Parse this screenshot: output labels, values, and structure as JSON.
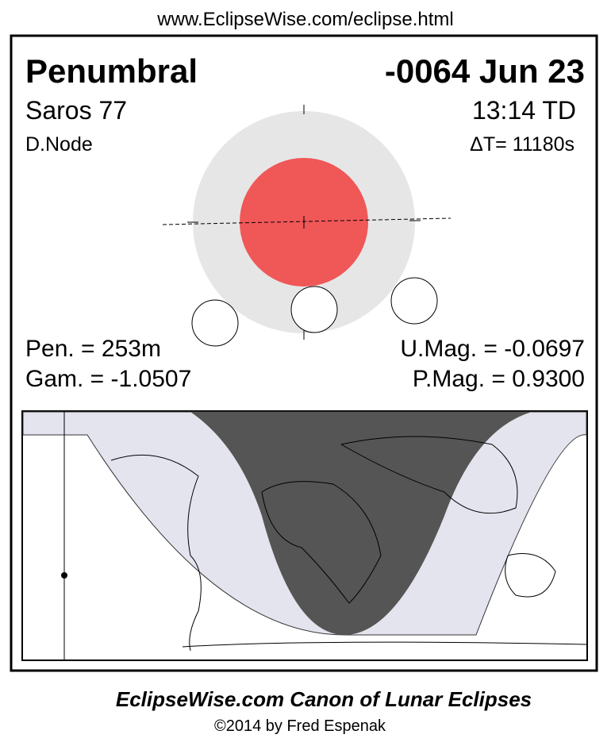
{
  "header": {
    "url": "www.EclipseWise.com/eclipse.html"
  },
  "eclipse": {
    "type": "Penumbral",
    "date": "-0064 Jun 23",
    "saros": "Saros  77",
    "time": "13:14 TD",
    "node": "D.Node",
    "delta_t": "ΔT=  11180s",
    "pen": "Pen. = 253m",
    "gamma": "Gam. = -1.0507",
    "umag": "U.Mag. = -0.0697",
    "pmag": "P.Mag. = 0.9300"
  },
  "footer": {
    "title": "EclipseWise.com Canon of Lunar Eclipses",
    "credit": "©2014 by Fred Espenak"
  }
}
